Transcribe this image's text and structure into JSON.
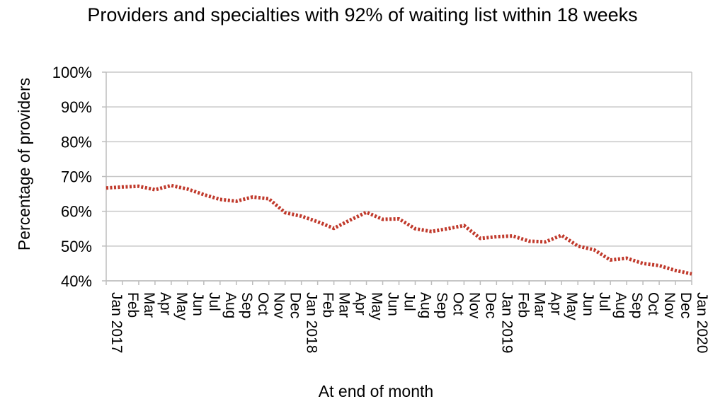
{
  "chart_data": {
    "type": "line",
    "title": "Providers and specialties with 92% of waiting list within 18 weeks",
    "xlabel": "At end of month",
    "ylabel": "Percentage of providers",
    "ylim": [
      40,
      100
    ],
    "y_ticks": [
      "40%",
      "50%",
      "60%",
      "70%",
      "80%",
      "90%",
      "100%"
    ],
    "grid": "horizontal",
    "legend": "none",
    "line_color": "#c0392b",
    "line_style": "dotted",
    "categories": [
      "Jan 2017",
      "Feb",
      "Mar",
      "Apr",
      "May",
      "Jun",
      "Jul",
      "Aug",
      "Sep",
      "Oct",
      "Nov",
      "Dec",
      "Jan 2018",
      "Feb",
      "Mar",
      "Apr",
      "May",
      "Jun",
      "Jul",
      "Aug",
      "Sep",
      "Oct",
      "Nov",
      "Dec",
      "Jan 2019",
      "Feb",
      "Mar",
      "Apr",
      "May",
      "Jun",
      "Jul",
      "Aug",
      "Sep",
      "Oct",
      "Nov",
      "Dec",
      "Jan 2020"
    ],
    "values": [
      66.7,
      67.0,
      67.2,
      66.2,
      67.4,
      66.4,
      64.8,
      63.4,
      62.9,
      64.1,
      63.6,
      59.6,
      58.6,
      57.0,
      55.1,
      57.5,
      59.7,
      57.7,
      57.8,
      55.0,
      54.2,
      55.0,
      55.9,
      52.2,
      52.7,
      52.9,
      51.4,
      51.2,
      53.1,
      50.0,
      48.9,
      46.0,
      46.5,
      45.0,
      44.4,
      43.0,
      42.0
    ]
  }
}
